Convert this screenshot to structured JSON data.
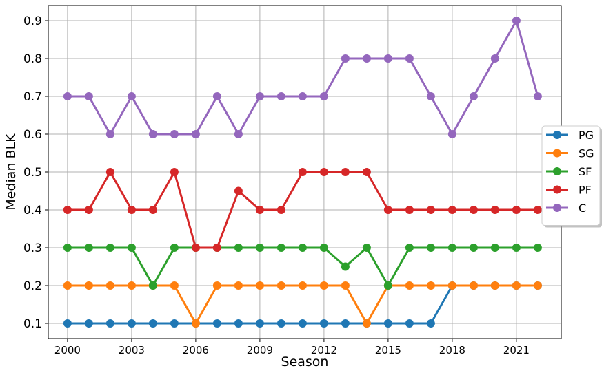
{
  "chart_data": {
    "type": "line",
    "xlabel": "Season",
    "ylabel": "Median BLK",
    "x": [
      2000,
      2001,
      2002,
      2003,
      2004,
      2005,
      2006,
      2007,
      2008,
      2009,
      2010,
      2011,
      2012,
      2013,
      2014,
      2015,
      2016,
      2017,
      2018,
      2019,
      2020,
      2021,
      2022
    ],
    "x_ticks": [
      2000,
      2003,
      2006,
      2009,
      2012,
      2015,
      2018,
      2021
    ],
    "y_ticks": [
      0.1,
      0.2,
      0.3,
      0.4,
      0.5,
      0.6,
      0.7,
      0.8,
      0.9
    ],
    "xlim": [
      1999.1,
      2023.1
    ],
    "ylim": [
      0.06,
      0.94
    ],
    "grid": true,
    "legend_position": "center-right",
    "series": [
      {
        "name": "PG",
        "color": "#1f77b4",
        "values": [
          0.1,
          0.1,
          0.1,
          0.1,
          0.1,
          0.1,
          0.1,
          0.1,
          0.1,
          0.1,
          0.1,
          0.1,
          0.1,
          0.1,
          0.1,
          0.1,
          0.1,
          0.1,
          0.2,
          0.2,
          0.2,
          0.2,
          0.2
        ]
      },
      {
        "name": "SG",
        "color": "#ff7f0e",
        "values": [
          0.2,
          0.2,
          0.2,
          0.2,
          0.2,
          0.2,
          0.1,
          0.2,
          0.2,
          0.2,
          0.2,
          0.2,
          0.2,
          0.2,
          0.1,
          0.2,
          0.2,
          0.2,
          0.2,
          0.2,
          0.2,
          0.2,
          0.2
        ]
      },
      {
        "name": "SF",
        "color": "#2ca02c",
        "values": [
          0.3,
          0.3,
          0.3,
          0.3,
          0.2,
          0.3,
          0.3,
          0.3,
          0.3,
          0.3,
          0.3,
          0.3,
          0.3,
          0.25,
          0.3,
          0.2,
          0.3,
          0.3,
          0.3,
          0.3,
          0.3,
          0.3,
          0.3
        ]
      },
      {
        "name": "PF",
        "color": "#d62728",
        "values": [
          0.4,
          0.4,
          0.5,
          0.4,
          0.4,
          0.5,
          0.3,
          0.3,
          0.45,
          0.4,
          0.4,
          0.5,
          0.5,
          0.5,
          0.5,
          0.4,
          0.4,
          0.4,
          0.4,
          0.4,
          0.4,
          0.4,
          0.4
        ]
      },
      {
        "name": "C",
        "color": "#9467bd",
        "values": [
          0.7,
          0.7,
          0.6,
          0.7,
          0.6,
          0.6,
          0.6,
          0.7,
          0.6,
          0.7,
          0.7,
          0.7,
          0.7,
          0.8,
          0.8,
          0.8,
          0.8,
          0.7,
          0.6,
          0.7,
          0.8,
          0.9,
          0.7
        ]
      }
    ]
  }
}
